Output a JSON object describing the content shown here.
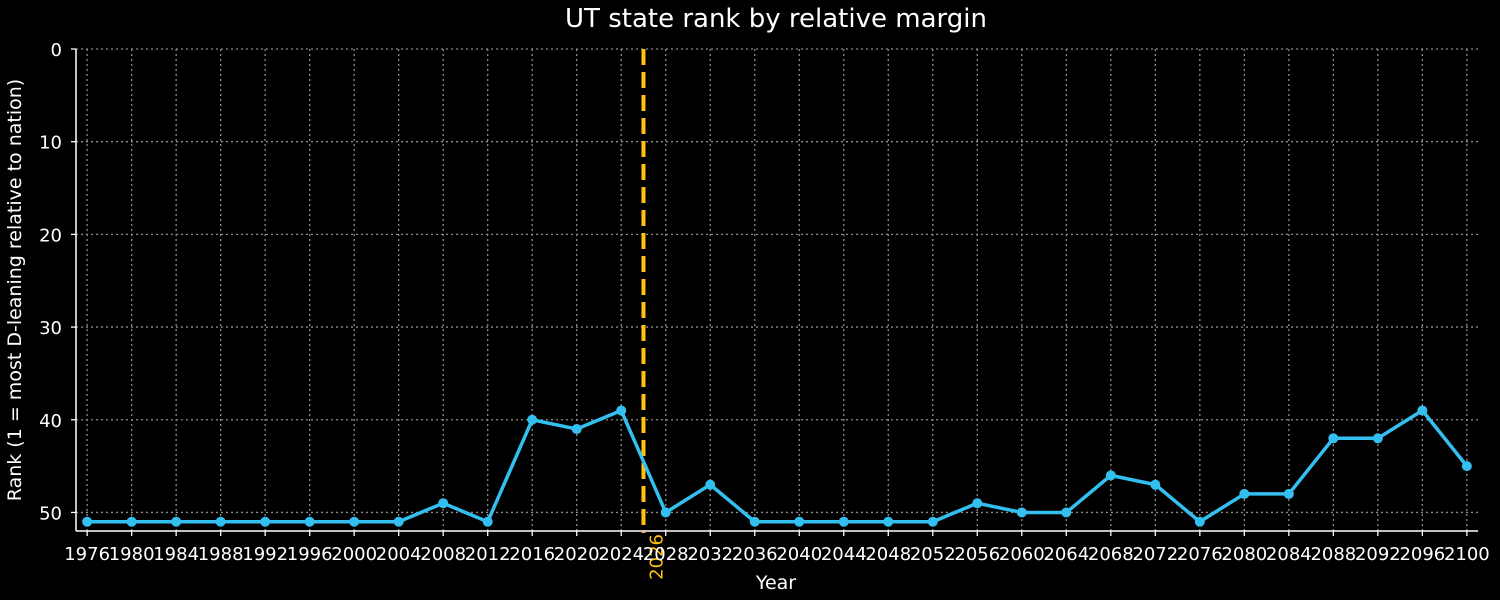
{
  "chart_data": {
    "type": "line",
    "title": "UT state rank by relative margin",
    "xlabel": "Year",
    "ylabel": "Rank (1 = most D-leaning relative to nation)",
    "x": [
      1976,
      1980,
      1984,
      1988,
      1992,
      1996,
      2000,
      2004,
      2008,
      2012,
      2016,
      2020,
      2024,
      2028,
      2032,
      2036,
      2040,
      2044,
      2048,
      2052,
      2056,
      2060,
      2064,
      2068,
      2072,
      2076,
      2080,
      2084,
      2088,
      2092,
      2096,
      2100
    ],
    "x_tick_labels": [
      "1976",
      "1980",
      "1984",
      "1988",
      "1992",
      "1996",
      "2000",
      "2004",
      "2008",
      "2012",
      "2016",
      "2020",
      "2024",
      "2028",
      "2032",
      "2036",
      "2040",
      "2044",
      "2048",
      "2052",
      "2056",
      "2060",
      "2064",
      "2068",
      "2072",
      "2076",
      "2080",
      "2084",
      "2088",
      "2092",
      "2096",
      "2100"
    ],
    "series": [
      {
        "values": [
          51,
          51,
          51,
          51,
          51,
          51,
          51,
          51,
          49,
          51,
          40,
          41,
          39,
          50,
          47,
          51,
          51,
          51,
          51,
          51,
          49,
          50,
          50,
          46,
          47,
          51,
          48,
          48,
          42,
          42,
          39,
          45
        ]
      }
    ],
    "ylim": [
      52,
      0
    ],
    "y_inverted": true,
    "y_ticks": [
      0,
      10,
      20,
      30,
      40,
      50
    ],
    "xlim": [
      1975,
      2101
    ],
    "grid": true,
    "grid_style": "dotted",
    "vline": {
      "x": 2026,
      "label": "2026",
      "style": "dashed"
    },
    "colors": {
      "background": "#000000",
      "line": "#33bff0",
      "vline": "#ffc20e",
      "grid": "#8c8c8c",
      "text": "#ffffff"
    }
  }
}
